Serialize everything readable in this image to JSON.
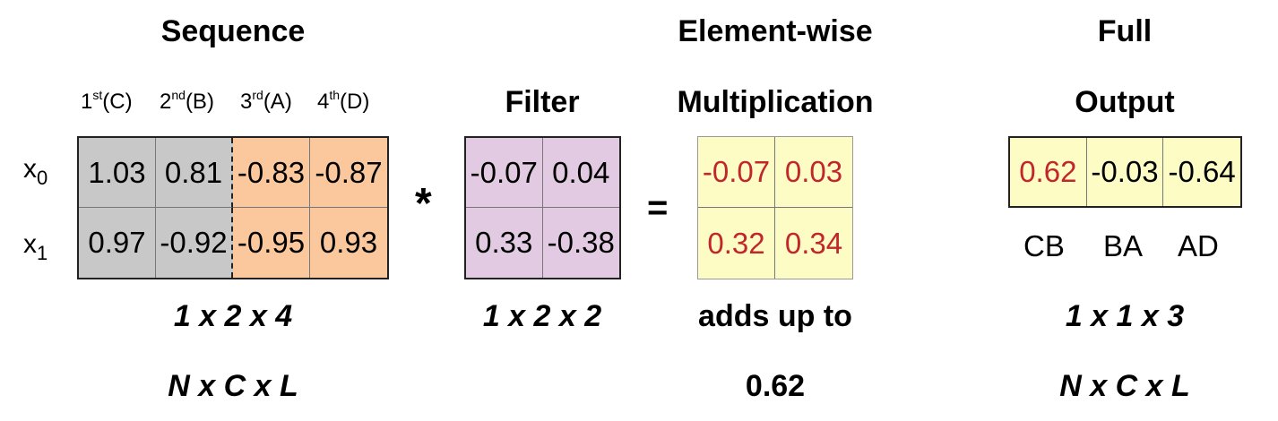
{
  "sequence": {
    "title": "Sequence",
    "columns": [
      {
        "main": "1",
        "sup": "st",
        "tail": "(C)"
      },
      {
        "main": "2",
        "sup": "nd",
        "tail": "(B)"
      },
      {
        "main": "3",
        "sup": "rd",
        "tail": "(A)"
      },
      {
        "main": "4",
        "sup": "th",
        "tail": "(D)"
      }
    ],
    "rows": [
      {
        "label": "x",
        "sub": "0"
      },
      {
        "label": "x",
        "sub": "1"
      }
    ],
    "values": [
      [
        "1.03",
        "0.81",
        "-0.83",
        "-0.87"
      ],
      [
        "0.97",
        "-0.92",
        "-0.95",
        "0.93"
      ]
    ],
    "shape": "1 x 2 x 4",
    "shape_names": "N x C x L",
    "colors": {
      "window_cells": "#c8c8c8",
      "rest_cells": "#fbc79c"
    }
  },
  "operator_conv": "*",
  "filter": {
    "title": "Filter",
    "values": [
      [
        "-0.07",
        "0.04"
      ],
      [
        "0.33",
        "-0.38"
      ]
    ],
    "shape": "1 x 2 x 2",
    "color": "#e2cbe2"
  },
  "operator_eq": "=",
  "multiplication": {
    "title_line1": "Element-wise",
    "title_line2": "Multiplication",
    "values": [
      [
        "-0.07",
        "0.03"
      ],
      [
        "0.32",
        "0.34"
      ]
    ],
    "caption": "adds up to",
    "sum": "0.62",
    "color": "#fefcc5",
    "text_color": "#c0262b"
  },
  "output": {
    "title_line1": "Full",
    "title_line2": "Output",
    "values": [
      "0.62",
      "-0.03",
      "-0.64"
    ],
    "labels": [
      "CB",
      "BA",
      "AD"
    ],
    "shape": "1 x 1 x 3",
    "shape_names": "N x C x L",
    "color": "#fefcc5"
  }
}
